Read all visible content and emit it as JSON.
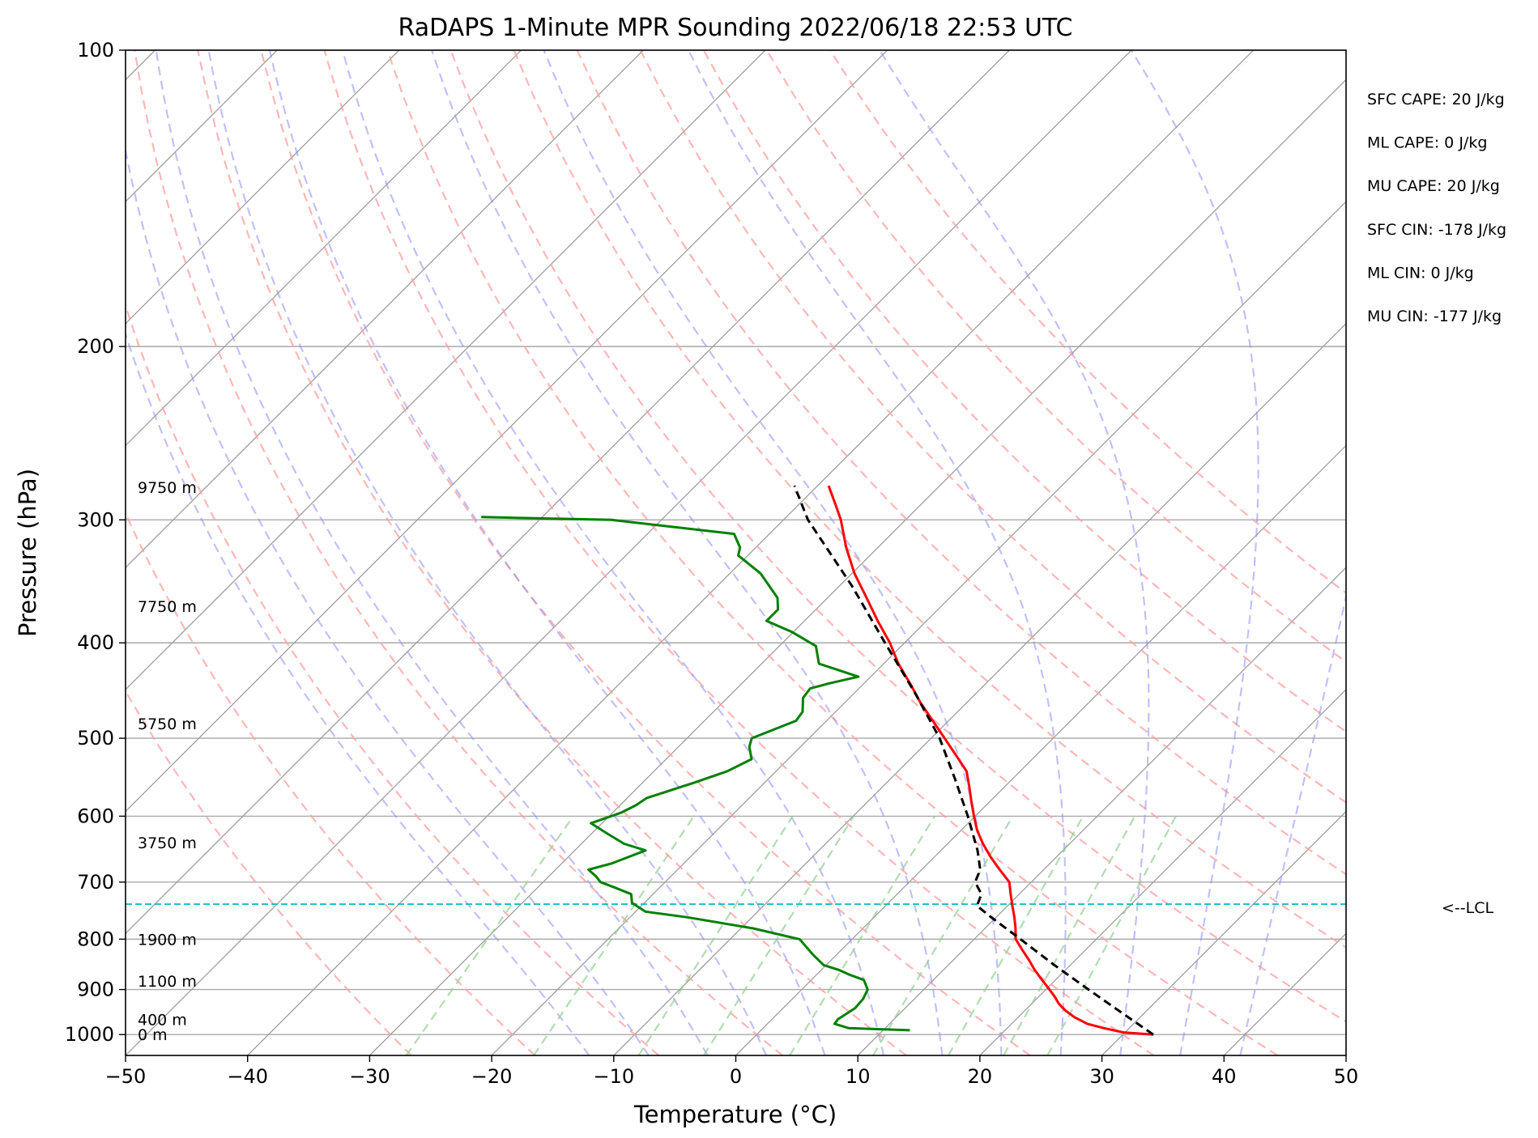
{
  "chart_data": {
    "type": "line",
    "title": "RaDAPS 1-Minute MPR Sounding 2022/06/18 22:53 UTC",
    "xlabel": "Temperature (°C)",
    "ylabel": "Pressure (hPa)",
    "xlim": [
      -50,
      50
    ],
    "ylim": [
      1050,
      100
    ],
    "y_scale": "log",
    "x_ticks": [
      "−50",
      "−40",
      "−30",
      "−20",
      "−10",
      "0",
      "10",
      "20",
      "30",
      "40",
      "50"
    ],
    "y_ticks": [
      {
        "p": 100,
        "label": "100"
      },
      {
        "p": 200,
        "label": "200"
      },
      {
        "p": 300,
        "label": "300"
      },
      {
        "p": 400,
        "label": "400"
      },
      {
        "p": 500,
        "label": "500"
      },
      {
        "p": 600,
        "label": "600"
      },
      {
        "p": 700,
        "label": "700"
      },
      {
        "p": 800,
        "label": "800"
      },
      {
        "p": 900,
        "label": "900"
      },
      {
        "p": 1000,
        "label": "1000"
      }
    ],
    "grid": true,
    "skew_isotherms": [
      -140,
      -130,
      -120,
      -110,
      -100,
      -90,
      -80,
      -70,
      -60,
      -50,
      -40,
      -30,
      -20,
      -10,
      0,
      10,
      20,
      30,
      40,
      50
    ],
    "dry_adiabats": [
      -30,
      -20,
      -10,
      0,
      10,
      20,
      30,
      40,
      50,
      60,
      70,
      80,
      90,
      100,
      110
    ],
    "moist_adiabats": [
      -15,
      -10,
      -5,
      0,
      5,
      10,
      15,
      20,
      25,
      30,
      35,
      40
    ],
    "mixing_ratios": [
      0.4,
      1,
      2,
      3,
      5,
      8,
      12,
      16,
      20
    ],
    "height_labels": [
      {
        "p": 278,
        "label": "9750 m"
      },
      {
        "p": 367,
        "label": "7750 m"
      },
      {
        "p": 483,
        "label": "5750 m"
      },
      {
        "p": 638,
        "label": "3750 m"
      },
      {
        "p": 800,
        "label": "1900 m"
      },
      {
        "p": 882,
        "label": "1100 m"
      },
      {
        "p": 965,
        "label": "400 m"
      },
      {
        "p": 1000,
        "label": "0 m"
      }
    ],
    "lcl": {
      "p": 737,
      "label": "<--LCL"
    },
    "stats": [
      "SFC CAPE: 20 J/kg",
      "ML CAPE: 0 J/kg",
      "MU CAPE: 20 J/kg",
      "SFC CIN: -178 J/kg",
      "ML CIN: 0 J/kg",
      "MU CIN: -177 J/kg"
    ],
    "series": [
      {
        "color": "#ff0000",
        "points": [
          {
            "p": 1000,
            "t": 32.5
          },
          {
            "p": 995,
            "t": 29.9
          },
          {
            "p": 985,
            "t": 27.9
          },
          {
            "p": 975,
            "t": 26.2
          },
          {
            "p": 960,
            "t": 24.6
          },
          {
            "p": 945,
            "t": 23.3
          },
          {
            "p": 930,
            "t": 22.2
          },
          {
            "p": 915,
            "t": 21.3
          },
          {
            "p": 900,
            "t": 20.3
          },
          {
            "p": 880,
            "t": 18.9
          },
          {
            "p": 860,
            "t": 17.5
          },
          {
            "p": 840,
            "t": 16.2
          },
          {
            "p": 820,
            "t": 14.8
          },
          {
            "p": 800,
            "t": 13.4
          },
          {
            "p": 780,
            "t": 12.5
          },
          {
            "p": 760,
            "t": 11.5
          },
          {
            "p": 740,
            "t": 10.4
          },
          {
            "p": 720,
            "t": 9.3
          },
          {
            "p": 700,
            "t": 8.2
          },
          {
            "p": 680,
            "t": 6.4
          },
          {
            "p": 660,
            "t": 4.6
          },
          {
            "p": 640,
            "t": 2.9
          },
          {
            "p": 620,
            "t": 1.3
          },
          {
            "p": 600,
            "t": -0.1
          },
          {
            "p": 580,
            "t": -1.5
          },
          {
            "p": 560,
            "t": -2.9
          },
          {
            "p": 540,
            "t": -4.4
          },
          {
            "p": 520,
            "t": -6.6
          },
          {
            "p": 500,
            "t": -8.9
          },
          {
            "p": 480,
            "t": -11.3
          },
          {
            "p": 460,
            "t": -13.8
          },
          {
            "p": 440,
            "t": -16.2
          },
          {
            "p": 420,
            "t": -18.8
          },
          {
            "p": 400,
            "t": -21.2
          },
          {
            "p": 380,
            "t": -24.0
          },
          {
            "p": 360,
            "t": -26.8
          },
          {
            "p": 340,
            "t": -29.8
          },
          {
            "p": 320,
            "t": -32.6
          },
          {
            "p": 300,
            "t": -35.3
          },
          {
            "p": 290,
            "t": -36.9
          },
          {
            "p": 277,
            "t": -39.1
          }
        ]
      },
      {
        "color": "#008000",
        "points": [
          {
            "p": 990,
            "t": 12.2
          },
          {
            "p": 985,
            "t": 7.0
          },
          {
            "p": 975,
            "t": 5.5
          },
          {
            "p": 965,
            "t": 5.4
          },
          {
            "p": 955,
            "t": 5.6
          },
          {
            "p": 940,
            "t": 5.9
          },
          {
            "p": 920,
            "t": 5.8
          },
          {
            "p": 900,
            "t": 5.4
          },
          {
            "p": 880,
            "t": 4.3
          },
          {
            "p": 870,
            "t": 2.8
          },
          {
            "p": 860,
            "t": 1.5
          },
          {
            "p": 850,
            "t": -0.2
          },
          {
            "p": 830,
            "t": -1.9
          },
          {
            "p": 800,
            "t": -4.3
          },
          {
            "p": 780,
            "t": -9.0
          },
          {
            "p": 760,
            "t": -15.3
          },
          {
            "p": 750,
            "t": -19.2
          },
          {
            "p": 735,
            "t": -21.0
          },
          {
            "p": 720,
            "t": -21.8
          },
          {
            "p": 710,
            "t": -23.5
          },
          {
            "p": 700,
            "t": -25.3
          },
          {
            "p": 690,
            "t": -26.2
          },
          {
            "p": 680,
            "t": -27.3
          },
          {
            "p": 670,
            "t": -25.9
          },
          {
            "p": 650,
            "t": -24.2
          },
          {
            "p": 640,
            "t": -26.5
          },
          {
            "p": 625,
            "t": -28.7
          },
          {
            "p": 610,
            "t": -30.9
          },
          {
            "p": 595,
            "t": -29.3
          },
          {
            "p": 585,
            "t": -28.7
          },
          {
            "p": 575,
            "t": -28.4
          },
          {
            "p": 555,
            "t": -25.8
          },
          {
            "p": 540,
            "t": -24.0
          },
          {
            "p": 525,
            "t": -23.0
          },
          {
            "p": 510,
            "t": -24.2
          },
          {
            "p": 500,
            "t": -24.7
          },
          {
            "p": 480,
            "t": -22.5
          },
          {
            "p": 470,
            "t": -22.7
          },
          {
            "p": 455,
            "t": -23.8
          },
          {
            "p": 445,
            "t": -24.0
          },
          {
            "p": 440,
            "t": -22.9
          },
          {
            "p": 433,
            "t": -21.0
          },
          {
            "p": 420,
            "t": -25.3
          },
          {
            "p": 403,
            "t": -27.0
          },
          {
            "p": 390,
            "t": -30.1
          },
          {
            "p": 380,
            "t": -33.1
          },
          {
            "p": 370,
            "t": -33.1
          },
          {
            "p": 360,
            "t": -34.1
          },
          {
            "p": 340,
            "t": -37.5
          },
          {
            "p": 326,
            "t": -40.8
          },
          {
            "p": 320,
            "t": -41.3
          },
          {
            "p": 310,
            "t": -42.9
          },
          {
            "p": 300,
            "t": -54.1
          },
          {
            "p": 298,
            "t": -65.0
          }
        ]
      },
      {
        "color": "#000000",
        "dashed": true,
        "points": [
          {
            "p": 1000,
            "t": 32.5
          },
          {
            "p": 950,
            "t": 28.1
          },
          {
            "p": 900,
            "t": 23.5
          },
          {
            "p": 850,
            "t": 18.7
          },
          {
            "p": 800,
            "t": 13.8
          },
          {
            "p": 760,
            "t": 9.6
          },
          {
            "p": 740,
            "t": 7.5
          },
          {
            "p": 720,
            "t": 6.9
          },
          {
            "p": 700,
            "t": 5.4
          },
          {
            "p": 680,
            "t": 4.8
          },
          {
            "p": 650,
            "t": 3.0
          },
          {
            "p": 600,
            "t": -0.6
          },
          {
            "p": 550,
            "t": -4.7
          },
          {
            "p": 500,
            "t": -9.3
          },
          {
            "p": 450,
            "t": -15.0
          },
          {
            "p": 400,
            "t": -21.6
          },
          {
            "p": 350,
            "t": -29.0
          },
          {
            "p": 300,
            "t": -38.0
          },
          {
            "p": 277,
            "t": -41.9
          }
        ]
      }
    ]
  }
}
